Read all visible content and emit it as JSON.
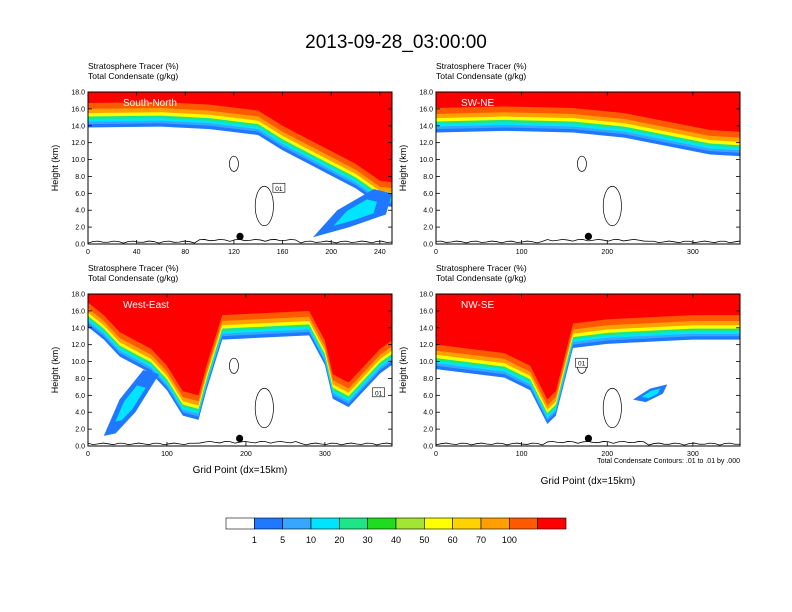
{
  "figure": {
    "title": "2013-09-28_03:00:00",
    "footnote": "Total Condensate Contours: .01 to .01 by .000"
  },
  "colorbar": {
    "colors": [
      "#ffffff",
      "#1f78ff",
      "#36a6ff",
      "#00e5ff",
      "#1ee687",
      "#1edc1e",
      "#a0e632",
      "#ffff00",
      "#ffd200",
      "#ffa000",
      "#ff5a00",
      "#ff0000"
    ],
    "labels": [
      "1",
      "5",
      "10",
      "20",
      "30",
      "40",
      "50",
      "60",
      "70",
      "100"
    ]
  },
  "chart_data": [
    {
      "type": "heatmap",
      "panel": "South-North",
      "title_lines": [
        "Stratosphere Tracer   (%)",
        "Total Condensate   (g/kg)"
      ],
      "ylabel": "Height (km)",
      "xlabel": "",
      "xlim": [
        0,
        250
      ],
      "ylim": [
        0,
        18
      ],
      "xticks": [
        0,
        40,
        80,
        120,
        160,
        200,
        240
      ],
      "yticks": [
        "0.0",
        "2.0",
        "4.0",
        "6.0",
        "8.0",
        "10.0",
        "12.0",
        "14.0",
        "16.0",
        "18.0"
      ],
      "tropopause_km": [
        [
          0,
          15.2
        ],
        [
          60,
          15.3
        ],
        [
          100,
          15.0
        ],
        [
          140,
          14.3
        ],
        [
          160,
          12.5
        ],
        [
          180,
          11.0
        ],
        [
          200,
          9.5
        ],
        [
          220,
          8.0
        ],
        [
          240,
          6.0
        ],
        [
          250,
          5.8
        ]
      ],
      "intrusions": [
        [
          [
            185,
            0.8
          ],
          [
            205,
            4.0
          ],
          [
            235,
            6.5
          ],
          [
            250,
            6.0
          ],
          [
            245,
            3.5
          ],
          [
            215,
            2.0
          ]
        ]
      ],
      "contour_label": {
        "x": 157,
        "y": 6.6,
        "text": "01"
      },
      "marker": {
        "x": 125,
        "y": 0.9
      }
    },
    {
      "type": "heatmap",
      "panel": "SW-NE",
      "title_lines": [
        "Stratosphere Tracer   (%)",
        "Total Condensate   (g/kg)"
      ],
      "ylabel": "Height (km)",
      "xlabel": "",
      "xlim": [
        0,
        355
      ],
      "ylim": [
        0,
        18
      ],
      "xticks": [
        0,
        100,
        200,
        300
      ],
      "yticks": [
        "0.0",
        "2.0",
        "4.0",
        "6.0",
        "8.0",
        "10.0",
        "12.0",
        "14.0",
        "16.0",
        "18.0"
      ],
      "tropopause_km": [
        [
          0,
          14.6
        ],
        [
          80,
          14.8
        ],
        [
          160,
          14.6
        ],
        [
          220,
          14.0
        ],
        [
          280,
          12.8
        ],
        [
          320,
          12.0
        ],
        [
          355,
          11.8
        ]
      ],
      "intrusions": [],
      "contour_label": null,
      "marker": {
        "x": 178,
        "y": 0.9
      }
    },
    {
      "type": "heatmap",
      "panel": "West-East",
      "title_lines": [
        "Stratosphere Tracer   (%)",
        "Total Condensate   (g/kg)"
      ],
      "ylabel": "Height (km)",
      "xlabel": "Grid Point (dx=15km)",
      "xlim": [
        0,
        385
      ],
      "ylim": [
        0,
        18
      ],
      "xticks": [
        0,
        100,
        200,
        300
      ],
      "yticks": [
        "0.0",
        "2.0",
        "4.0",
        "6.0",
        "8.0",
        "10.0",
        "12.0",
        "14.0",
        "16.0",
        "18.0"
      ],
      "tropopause_km": [
        [
          0,
          15.5
        ],
        [
          20,
          14.0
        ],
        [
          40,
          12.0
        ],
        [
          60,
          11.0
        ],
        [
          80,
          10.0
        ],
        [
          100,
          8.0
        ],
        [
          120,
          5.0
        ],
        [
          140,
          4.5
        ],
        [
          150,
          8.0
        ],
        [
          170,
          14.0
        ],
        [
          280,
          14.5
        ],
        [
          300,
          11.0
        ],
        [
          310,
          7.0
        ],
        [
          330,
          6.0
        ],
        [
          350,
          8.0
        ],
        [
          370,
          10.0
        ],
        [
          385,
          11.0
        ]
      ],
      "intrusions": [
        [
          [
            20,
            1.2
          ],
          [
            40,
            5.5
          ],
          [
            70,
            9.0
          ],
          [
            90,
            8.5
          ],
          [
            60,
            4.0
          ],
          [
            35,
            1.5
          ]
        ]
      ],
      "contour_label": {
        "x": 368,
        "y": 6.3,
        "text": "01"
      },
      "marker": {
        "x": 192,
        "y": 0.9
      }
    },
    {
      "type": "heatmap",
      "panel": "NW-SE",
      "title_lines": [
        "Stratosphere Tracer   (%)",
        "Total Condensate   (g/kg)"
      ],
      "ylabel": "Height (km)",
      "xlabel": "Grid Point (dx=15km)",
      "xlim": [
        0,
        355
      ],
      "ylim": [
        0,
        18
      ],
      "xticks": [
        0,
        100,
        200,
        300
      ],
      "yticks": [
        "0.0",
        "2.0",
        "4.0",
        "6.0",
        "8.0",
        "10.0",
        "12.0",
        "14.0",
        "16.0",
        "18.0"
      ],
      "tropopause_km": [
        [
          0,
          10.5
        ],
        [
          40,
          10.0
        ],
        [
          80,
          9.5
        ],
        [
          110,
          8.0
        ],
        [
          130,
          4.0
        ],
        [
          140,
          5.0
        ],
        [
          160,
          13.0
        ],
        [
          200,
          13.5
        ],
        [
          260,
          13.8
        ],
        [
          300,
          14.0
        ],
        [
          355,
          14.0
        ]
      ],
      "intrusions": [
        [
          [
            230,
            5.5
          ],
          [
            250,
            6.8
          ],
          [
            270,
            7.3
          ],
          [
            265,
            6.2
          ],
          [
            245,
            5.2
          ]
        ]
      ],
      "contour_label": {
        "x": 170,
        "y": 9.8,
        "text": "01"
      },
      "marker": {
        "x": 178,
        "y": 0.9
      }
    }
  ]
}
